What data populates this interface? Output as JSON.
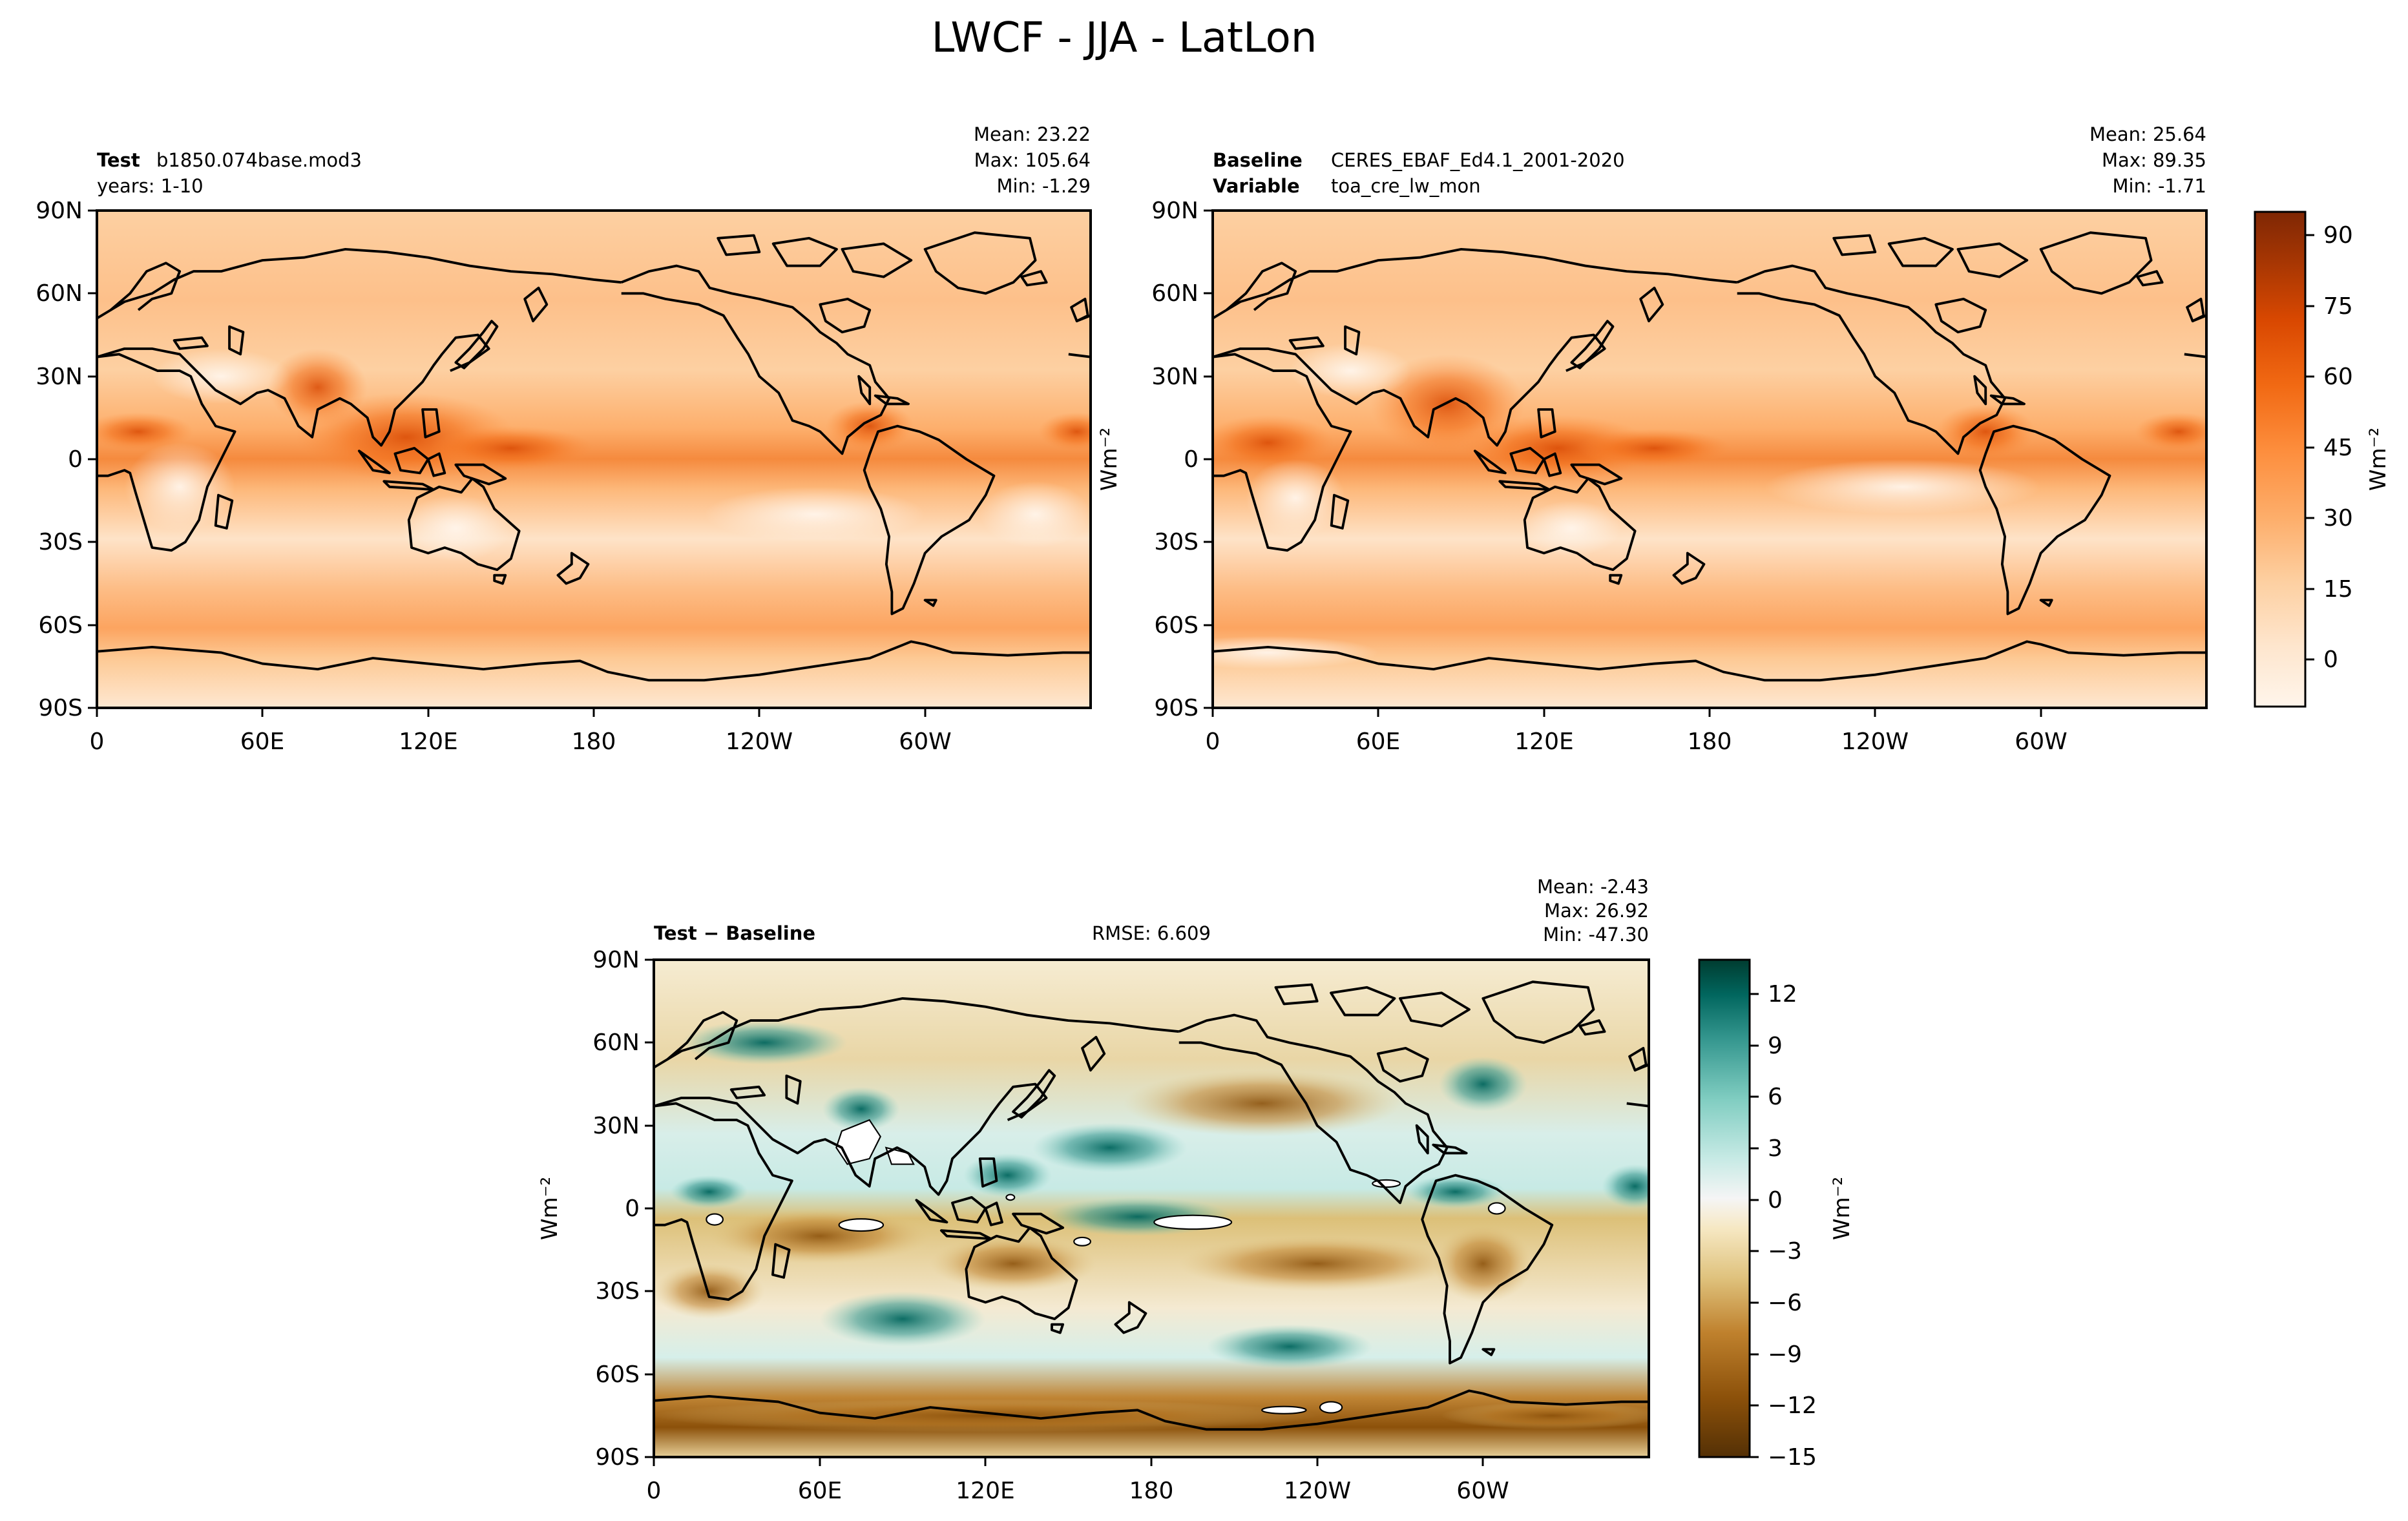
{
  "figure": {
    "title": "LWCF - JJA - LatLon"
  },
  "colors": {
    "land_outline": "#000000",
    "orange_ramp": [
      "#fff5eb",
      "#fee6ce",
      "#fdd0a2",
      "#fdae6b",
      "#fd8d3c",
      "#f16913",
      "#d94801",
      "#a63603",
      "#7f2704"
    ],
    "diff_ramp": [
      "#543005",
      "#8c510a",
      "#bf812d",
      "#dfc27d",
      "#f6e8c3",
      "#f5f5f5",
      "#c7eae5",
      "#80cdc1",
      "#35978f",
      "#01665e",
      "#003c30"
    ]
  },
  "chart_data": [
    {
      "id": "test",
      "type": "heatmap",
      "title_bold": "Test",
      "title_value": "b1850.074base.mod3",
      "subtitle": "years: 1-10",
      "stats": {
        "mean": "Mean: 23.22",
        "max": "Max: 105.64",
        "min": "Min: -1.29"
      },
      "ylabel": "",
      "x_ticks": [
        "0",
        "60E",
        "120E",
        "180",
        "120W",
        "60W"
      ],
      "y_ticks": [
        "90N",
        "60N",
        "30N",
        "0",
        "30S",
        "60S",
        "90S"
      ],
      "xlim": [
        0,
        360
      ],
      "ylim": [
        -90,
        90
      ],
      "colorbar": "orange"
    },
    {
      "id": "baseline",
      "type": "heatmap",
      "title_bold": "Baseline",
      "title_value": "CERES_EBAF_Ed4.1_2001-2020",
      "subtitle_bold": "Variable",
      "subtitle_value": "toa_cre_lw_mon",
      "stats": {
        "mean": "Mean: 25.64",
        "max": "Max: 89.35",
        "min": "Min: -1.71"
      },
      "ylabel": "Wm⁻²",
      "x_ticks": [
        "0",
        "60E",
        "120E",
        "180",
        "120W",
        "60W"
      ],
      "y_ticks": [
        "90N",
        "60N",
        "30N",
        "0",
        "30S",
        "60S",
        "90S"
      ],
      "xlim": [
        0,
        360
      ],
      "ylim": [
        -90,
        90
      ],
      "colorbar": "orange"
    },
    {
      "id": "diff",
      "type": "heatmap",
      "title_bold": "Test − Baseline",
      "rmse": "RMSE: 6.609",
      "stats": {
        "mean": "Mean: -2.43",
        "max": "Max: 26.92",
        "min": "Min: -47.30"
      },
      "ylabel": "Wm⁻²",
      "x_ticks": [
        "0",
        "60E",
        "120E",
        "180",
        "120W",
        "60W"
      ],
      "y_ticks": [
        "90N",
        "60N",
        "30N",
        "0",
        "30S",
        "60S",
        "90S"
      ],
      "xlim": [
        0,
        360
      ],
      "ylim": [
        -90,
        90
      ],
      "colorbar": "diff"
    }
  ],
  "colorbars": {
    "orange": {
      "label": "Wm⁻²",
      "ticks": [
        "90",
        "75",
        "60",
        "45",
        "30",
        "15",
        "0"
      ],
      "range": [
        -10,
        95
      ]
    },
    "diff": {
      "label": "Wm⁻²",
      "ticks": [
        "12",
        "9",
        "6",
        "3",
        "0",
        "−3",
        "−6",
        "−9",
        "−12",
        "−15"
      ],
      "range": [
        -15,
        14
      ]
    }
  }
}
